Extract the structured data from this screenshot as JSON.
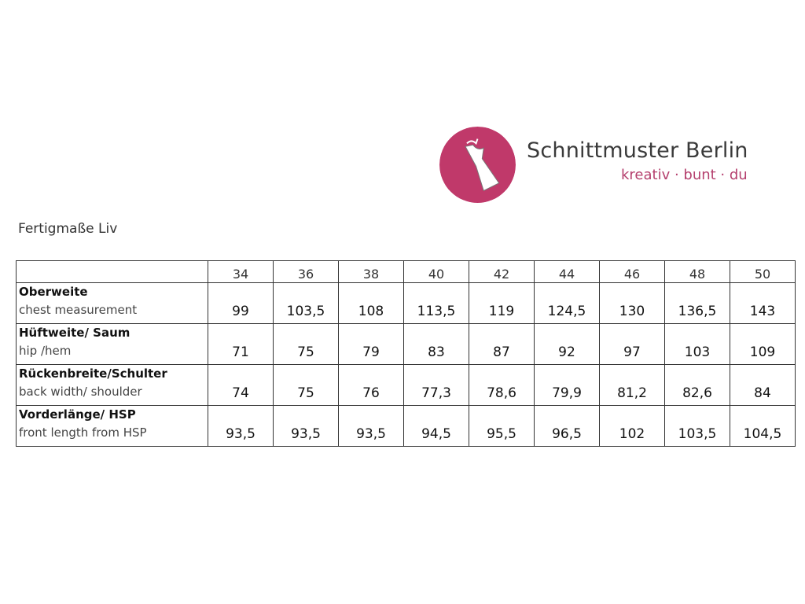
{
  "logo": {
    "brand": "Schnittmuster Berlin",
    "tagline": "kreativ · bunt · du",
    "color": "#c0396a"
  },
  "title": "Fertigmaße Liv",
  "table": {
    "sizes": [
      "34",
      "36",
      "38",
      "40",
      "42",
      "44",
      "46",
      "48",
      "50"
    ],
    "rows": [
      {
        "label_de": "Oberweite",
        "label_en": "chest measurement",
        "values": [
          "99",
          "103,5",
          "108",
          "113,5",
          "119",
          "124,5",
          "130",
          "136,5",
          "143"
        ]
      },
      {
        "label_de": "Hüftweite/ Saum",
        "label_en": "hip /hem",
        "values": [
          "71",
          "75",
          "79",
          "83",
          "87",
          "92",
          "97",
          "103",
          "109"
        ]
      },
      {
        "label_de": "Rückenbreite/Schulter",
        "label_en": "back width/ shoulder",
        "values": [
          "74",
          "75",
          "76",
          "77,3",
          "78,6",
          "79,9",
          "81,2",
          "82,6",
          "84"
        ]
      },
      {
        "label_de": "Vorderlänge/ HSP",
        "label_en": "front length from HSP",
        "values": [
          "93,5",
          "93,5",
          "93,5",
          "94,5",
          "95,5",
          "96,5",
          "102",
          "103,5",
          "104,5"
        ]
      }
    ]
  }
}
